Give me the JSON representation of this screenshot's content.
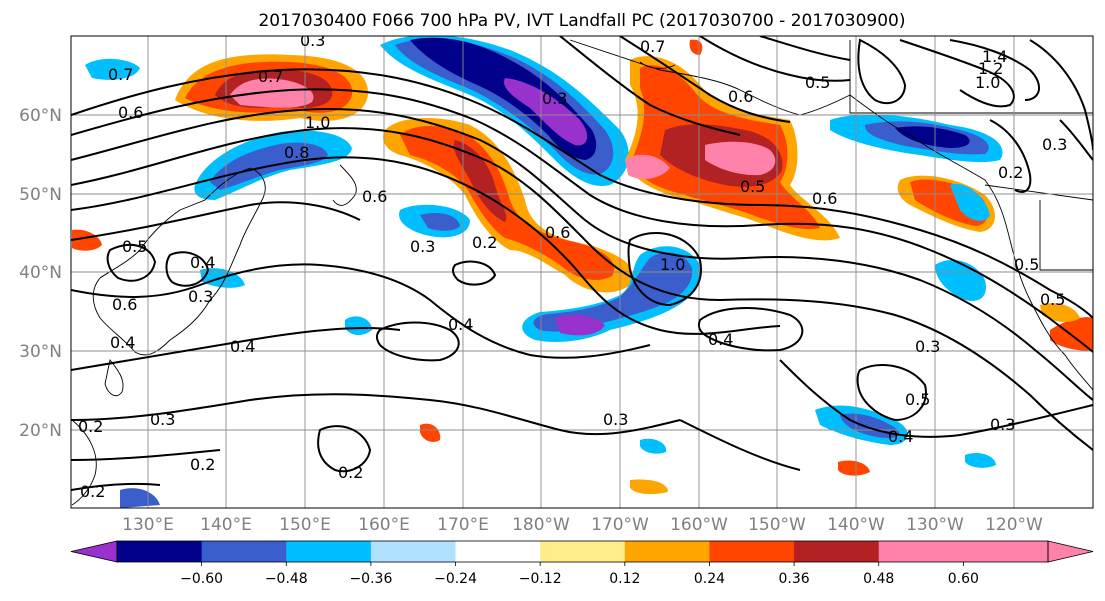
{
  "map": {
    "title": "2017030400 F066 700 hPa PV, IVT Landfall PC (2017030700 - 2017030900)",
    "lat_labels": [
      "60°N",
      "50°N",
      "40°N",
      "30°N",
      "20°N"
    ],
    "lon_labels": [
      "130°E",
      "140°E",
      "150°E",
      "160°E",
      "170°E",
      "180°W",
      "170°W",
      "160°W",
      "150°W",
      "140°W",
      "130°W",
      "120°W"
    ],
    "contour_labels": [
      "0.3",
      "0.7",
      "0.7",
      "0.6",
      "0.5",
      "1.0",
      "1.2",
      "1.4",
      "0.6",
      "0.8",
      "1.0",
      "0.3",
      "0.6",
      "0.5",
      "0.6",
      "0.2",
      "0.6",
      "0.3",
      "0.4",
      "0.3",
      "0.5",
      "0.6",
      "0.4",
      "0.4",
      "0.4",
      "0.3",
      "0.2",
      "0.2",
      "0.3",
      "0.2",
      "0.2",
      "0.5",
      "0.4",
      "0.3",
      "0.3",
      "0.5",
      "0.5",
      "0.3",
      "1.0",
      "0.4",
      "0.2",
      "0.7"
    ]
  },
  "colorbar": {
    "tick_labels": [
      "−0.60",
      "−0.48",
      "−0.36",
      "−0.24",
      "−0.12",
      "0.12",
      "0.24",
      "0.36",
      "0.48",
      "0.60"
    ],
    "colors": [
      "#9932cc",
      "#00008b",
      "#3a5fcd",
      "#00bfff",
      "#b0e2ff",
      "#ffffff",
      "#ffec8b",
      "#ffa500",
      "#ff4500",
      "#b22222",
      "#ff82ab",
      "#ff82ab"
    ]
  }
}
